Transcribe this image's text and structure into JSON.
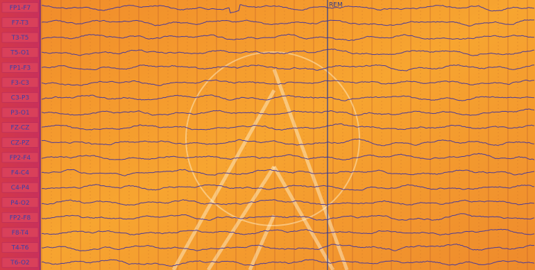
{
  "channels": [
    "FP1-F7",
    "F7-T3",
    "T3-T5",
    "T5-O1",
    "FP1-F3",
    "F3-C3",
    "C3-P3",
    "P3-O1",
    "FZ-CZ",
    "CZ-PZ",
    "FP2-F4",
    "F4-C4",
    "C4-P4",
    "P4-O2",
    "FP2-F8",
    "F8-T4",
    "T4-T6",
    "T6-O2"
  ],
  "annotation": "REM"
}
